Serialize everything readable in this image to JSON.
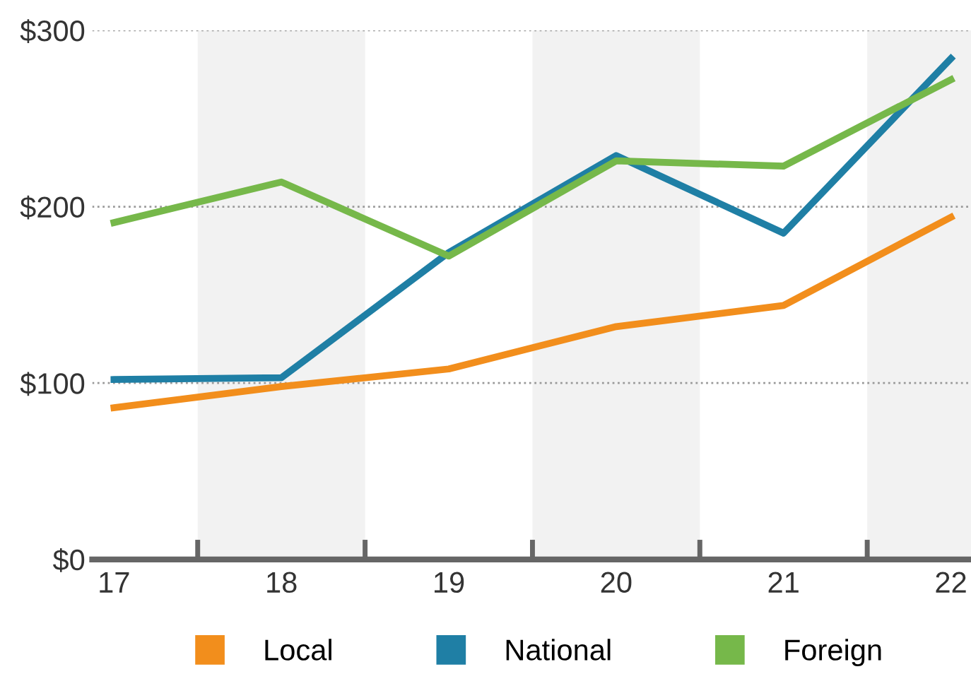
{
  "chart_data": {
    "type": "line",
    "x": [
      17,
      18,
      19,
      20,
      21,
      22
    ],
    "series": [
      {
        "name": "Local",
        "color": "#f28e1c",
        "values": [
          86,
          98,
          108,
          132,
          144,
          194
        ]
      },
      {
        "name": "National",
        "color": "#1f7fa5",
        "values": [
          102,
          103,
          174,
          229,
          185,
          284
        ]
      },
      {
        "name": "Foreign",
        "color": "#76b84a",
        "values": [
          191,
          214,
          172,
          226,
          223,
          272
        ]
      }
    ],
    "xlim": [
      16.87,
      22.12
    ],
    "xticks": [
      17,
      {
        "value": 17.5,
        "label": null
      },
      18,
      {
        "value": 18.5,
        "label": null
      },
      19,
      {
        "value": 19.5,
        "label": null
      },
      20,
      {
        "value": 20.5,
        "label": null
      },
      21,
      {
        "value": 21.5,
        "label": null
      },
      22
    ],
    "ylim": [
      0,
      300
    ],
    "yticks": [
      {
        "value": 0,
        "label": "$0"
      },
      {
        "value": 100,
        "label": "$100"
      },
      {
        "value": 200,
        "label": "$200"
      },
      {
        "value": 300,
        "label": "$300"
      }
    ],
    "bands": [
      {
        "axis": "x",
        "from": 17.5,
        "to": 18.5,
        "color": "#f2f2f2"
      },
      {
        "axis": "x",
        "from": 19.5,
        "to": 20.5,
        "color": "#f2f2f2"
      },
      {
        "axis": "x",
        "from": 21.5,
        "to": 22.12,
        "color": "#f2f2f2"
      }
    ],
    "grid": "y",
    "legend": "bottom",
    "marker": "none",
    "line_style": "solid"
  }
}
